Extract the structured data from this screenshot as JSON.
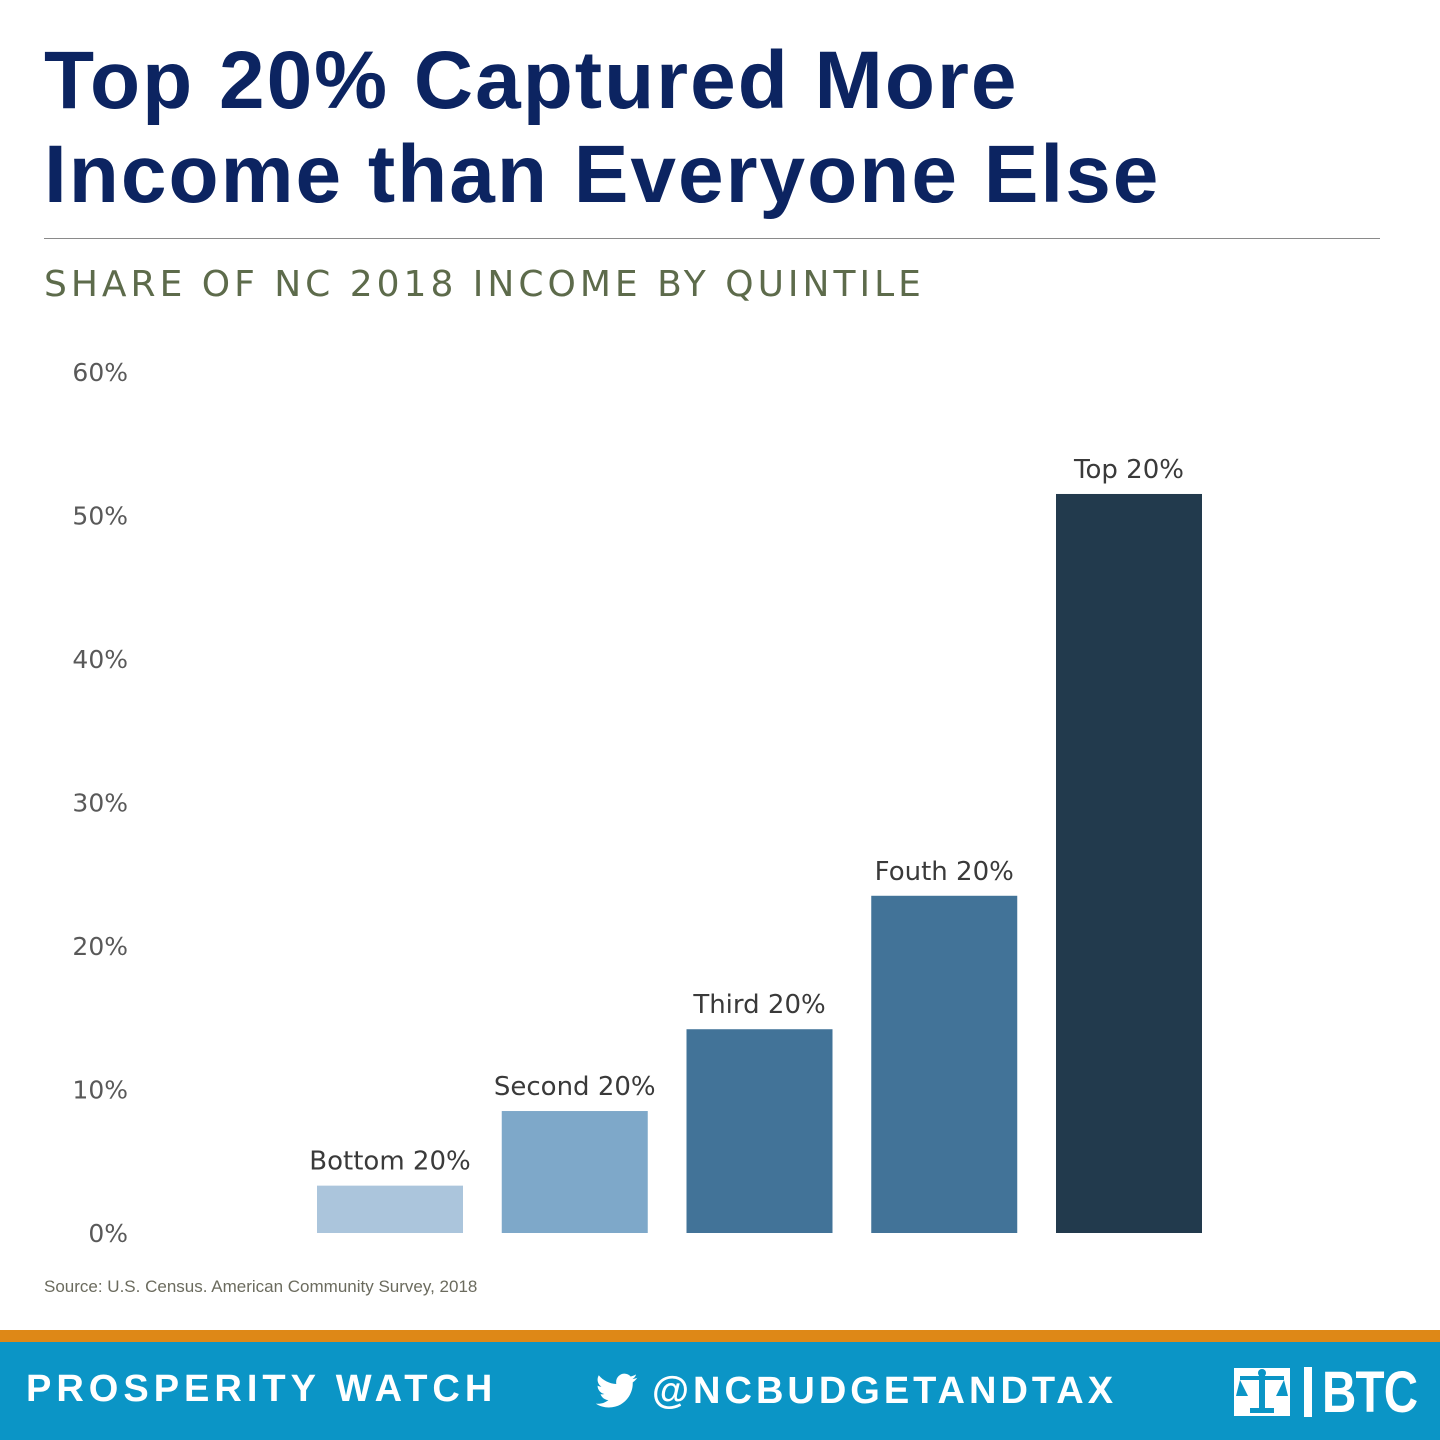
{
  "title": {
    "line1": "Top 20% Captured More",
    "line2": "Income than Everyone Else"
  },
  "subtitle": "SHARE OF NC 2018 INCOME BY QUINTILE",
  "source": "Source: U.S. Census. American Community Survey, 2018",
  "footer": {
    "left_label": "PROSPERITY WATCH",
    "handle": "@NCBUDGETANDTAX",
    "org_label": "BTC",
    "twitter_icon": "twitter-bird-icon",
    "logo_icon": "btc-scales-logo"
  },
  "colors": {
    "title": "#0c2461",
    "subtitle": "#5d6b4b",
    "footer_bg": "#0b95c6",
    "footer_stripe": "#de8817",
    "bar_colors": [
      "#abc5dc",
      "#7ea8c9",
      "#427398",
      "#427398",
      "#223a4d"
    ]
  },
  "chart_data": {
    "type": "bar",
    "categories": [
      "Bottom 20%",
      "Second 20%",
      "Third 20%",
      "Fouth 20%",
      "Top 20%"
    ],
    "values": [
      3.3,
      8.5,
      14.2,
      23.5,
      51.5
    ],
    "data_labels": [
      "Bottom 20%",
      "Second 20%",
      "Third 20%",
      "Fouth 20%",
      "Top 20%"
    ],
    "y_ticks": [
      "0%",
      "10%",
      "20%",
      "30%",
      "40%",
      "50%",
      "60%"
    ],
    "y_tick_values": [
      0,
      10,
      20,
      30,
      40,
      50,
      60
    ],
    "ylim": [
      0,
      60
    ],
    "title": "SHARE OF NC 2018 INCOME BY QUINTILE",
    "xlabel": "",
    "ylabel": "",
    "grid": false,
    "legend": "none"
  }
}
